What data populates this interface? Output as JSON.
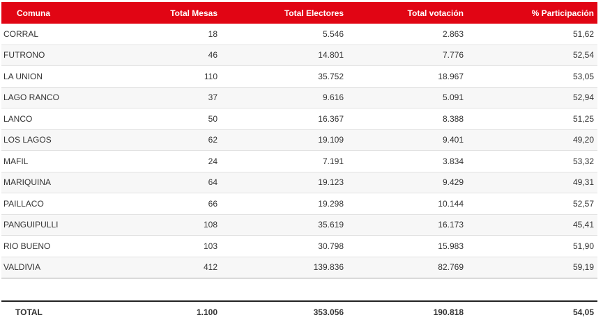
{
  "table": {
    "headers": {
      "comuna": "Comuna",
      "mesas": "Total Mesas",
      "electores": "Total Electores",
      "votacion": "Total votación",
      "participacion": "% Participación"
    },
    "rows": [
      {
        "comuna": "CORRAL",
        "mesas": "18",
        "electores": "5.546",
        "votacion": "2.863",
        "participacion": "51,62"
      },
      {
        "comuna": "FUTRONO",
        "mesas": "46",
        "electores": "14.801",
        "votacion": "7.776",
        "participacion": "52,54"
      },
      {
        "comuna": "LA UNION",
        "mesas": "110",
        "electores": "35.752",
        "votacion": "18.967",
        "participacion": "53,05"
      },
      {
        "comuna": "LAGO RANCO",
        "mesas": "37",
        "electores": "9.616",
        "votacion": "5.091",
        "participacion": "52,94"
      },
      {
        "comuna": "LANCO",
        "mesas": "50",
        "electores": "16.367",
        "votacion": "8.388",
        "participacion": "51,25"
      },
      {
        "comuna": "LOS LAGOS",
        "mesas": "62",
        "electores": "19.109",
        "votacion": "9.401",
        "participacion": "49,20"
      },
      {
        "comuna": "MAFIL",
        "mesas": "24",
        "electores": "7.191",
        "votacion": "3.834",
        "participacion": "53,32"
      },
      {
        "comuna": "MARIQUINA",
        "mesas": "64",
        "electores": "19.123",
        "votacion": "9.429",
        "participacion": "49,31"
      },
      {
        "comuna": "PAILLACO",
        "mesas": "66",
        "electores": "19.298",
        "votacion": "10.144",
        "participacion": "52,57"
      },
      {
        "comuna": "PANGUIPULLI",
        "mesas": "108",
        "electores": "35.619",
        "votacion": "16.173",
        "participacion": "45,41"
      },
      {
        "comuna": "RIO BUENO",
        "mesas": "103",
        "electores": "30.798",
        "votacion": "15.983",
        "participacion": "51,90"
      },
      {
        "comuna": "VALDIVIA",
        "mesas": "412",
        "electores": "139.836",
        "votacion": "82.769",
        "participacion": "59,19"
      }
    ],
    "total": {
      "comuna": "TOTAL",
      "mesas": "1.100",
      "electores": "353.056",
      "votacion": "190.818",
      "participacion": "54,05"
    }
  },
  "colors": {
    "header_bg": "#e10514",
    "header_text": "#ffffff"
  }
}
